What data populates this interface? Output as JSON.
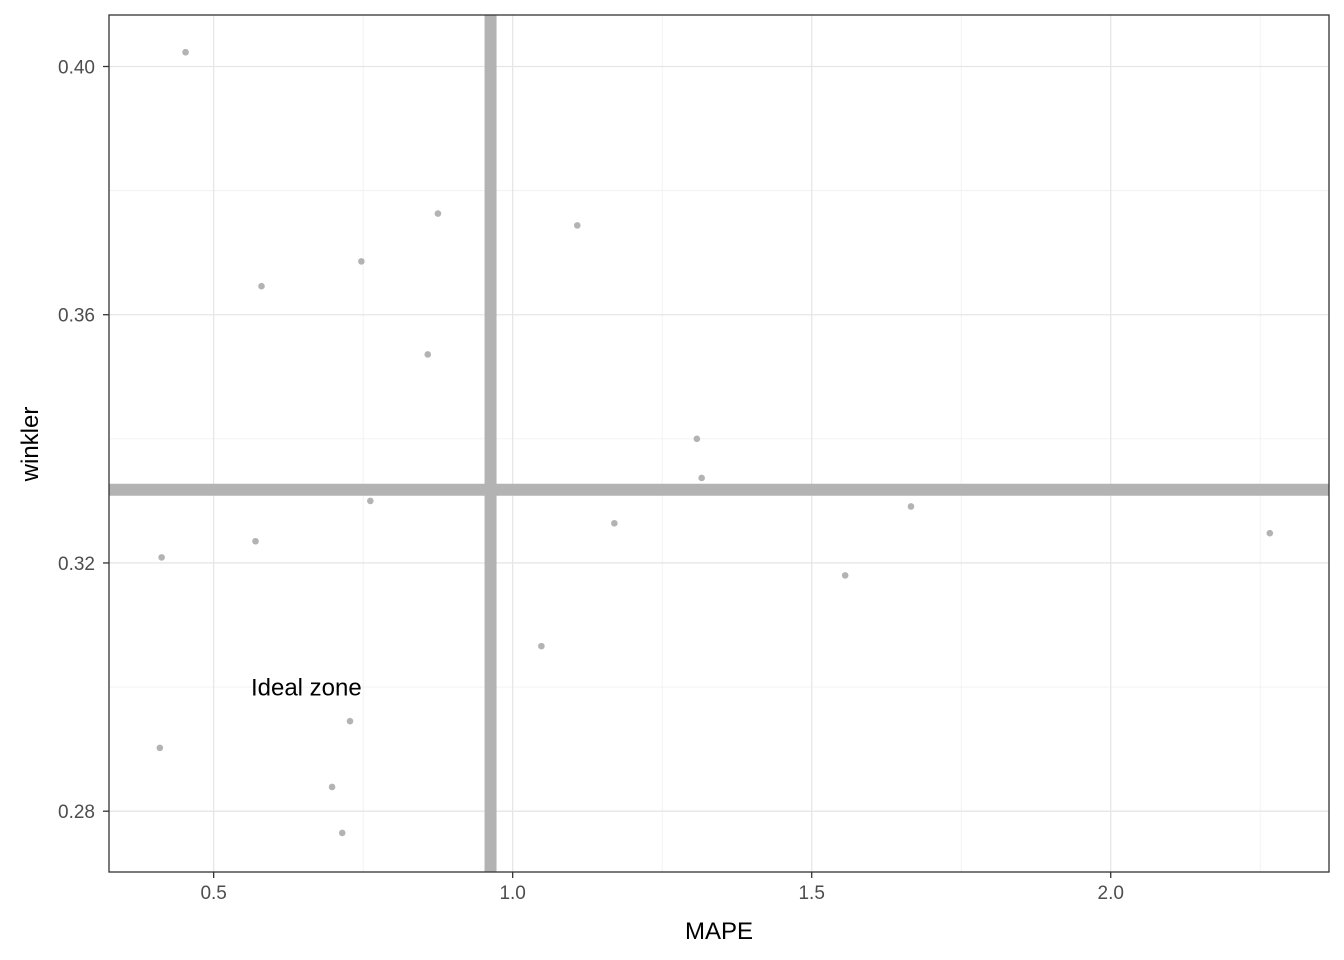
{
  "chart_data": {
    "type": "scatter",
    "xlabel": "MAPE",
    "ylabel": "winkler",
    "xlim": [
      0.325,
      2.365
    ],
    "ylim": [
      0.2702,
      0.4083
    ],
    "x_ticks": [
      0.5,
      1.0,
      1.5,
      2.0
    ],
    "x_tick_labels": [
      "0.5",
      "1.0",
      "1.5",
      "2.0"
    ],
    "y_ticks": [
      0.28,
      0.32,
      0.36,
      0.4
    ],
    "y_tick_labels": [
      "0.28",
      "0.32",
      "0.36",
      "0.40"
    ],
    "grid": true,
    "point_color": "#b3b3b3",
    "reference_lines": {
      "vline_x": 0.963,
      "hline_y": 0.3318,
      "color": "#b3b3b3"
    },
    "annotation": {
      "text": "Ideal zone",
      "x": 0.655,
      "y": 0.2997
    },
    "points": [
      {
        "x": 0.453,
        "y": 0.4023
      },
      {
        "x": 0.58,
        "y": 0.3646
      },
      {
        "x": 0.747,
        "y": 0.3686
      },
      {
        "x": 0.875,
        "y": 0.3763
      },
      {
        "x": 0.858,
        "y": 0.3536
      },
      {
        "x": 1.108,
        "y": 0.3744
      },
      {
        "x": 1.308,
        "y": 0.34
      },
      {
        "x": 1.316,
        "y": 0.3337
      },
      {
        "x": 0.762,
        "y": 0.33
      },
      {
        "x": 0.413,
        "y": 0.3209
      },
      {
        "x": 0.57,
        "y": 0.3235
      },
      {
        "x": 1.17,
        "y": 0.3264
      },
      {
        "x": 1.666,
        "y": 0.3291
      },
      {
        "x": 2.266,
        "y": 0.3248
      },
      {
        "x": 1.556,
        "y": 0.318
      },
      {
        "x": 1.048,
        "y": 0.3066
      },
      {
        "x": 0.728,
        "y": 0.2945
      },
      {
        "x": 0.41,
        "y": 0.2902
      },
      {
        "x": 0.698,
        "y": 0.2839
      },
      {
        "x": 0.715,
        "y": 0.2765
      }
    ]
  }
}
